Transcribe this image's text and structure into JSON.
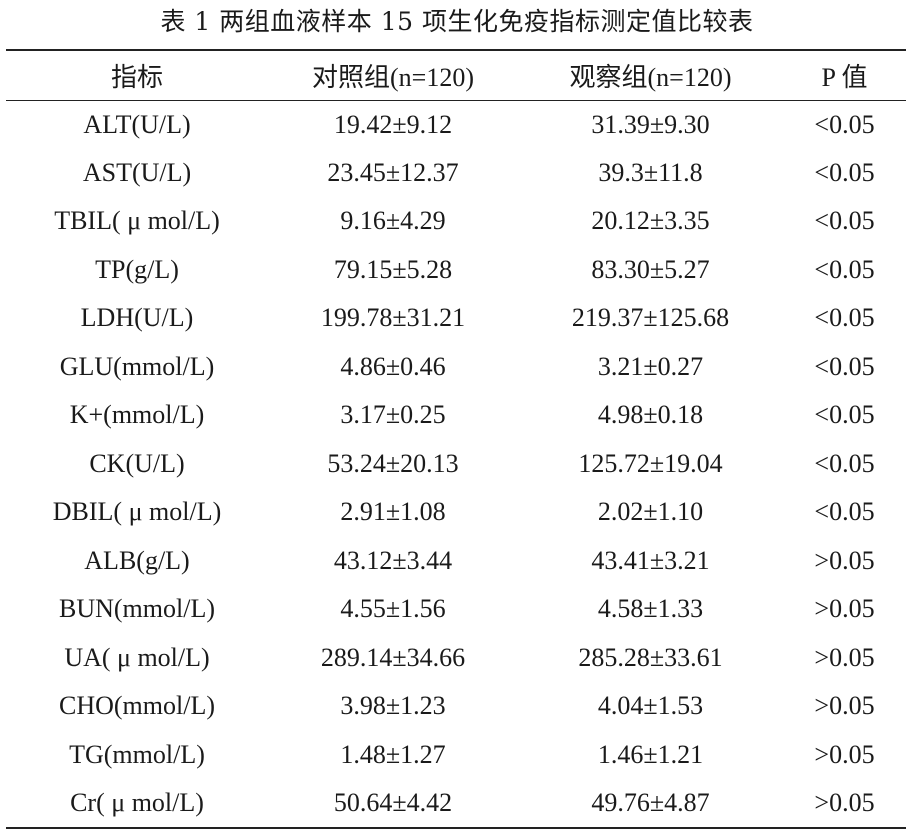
{
  "caption": "表 1  两组血液样本 15 项生化免疫指标测定值比较表",
  "table": {
    "headers": [
      "指标",
      "对照组(n=120)",
      "观察组(n=120)",
      "P 值"
    ],
    "rows": [
      [
        "ALT(U/L)",
        "19.42±9.12",
        "31.39±9.30",
        "<0.05"
      ],
      [
        "AST(U/L)",
        "23.45±12.37",
        "39.3±11.8",
        "<0.05"
      ],
      [
        "TBIL( μ mol/L)",
        "9.16±4.29",
        "20.12±3.35",
        "<0.05"
      ],
      [
        "TP(g/L)",
        "79.15±5.28",
        "83.30±5.27",
        "<0.05"
      ],
      [
        "LDH(U/L)",
        "199.78±31.21",
        "219.37±125.68",
        "<0.05"
      ],
      [
        "GLU(mmol/L)",
        "4.86±0.46",
        "3.21±0.27",
        "<0.05"
      ],
      [
        "K+(mmol/L)",
        "3.17±0.25",
        "4.98±0.18",
        "<0.05"
      ],
      [
        "CK(U/L)",
        "53.24±20.13",
        "125.72±19.04",
        "<0.05"
      ],
      [
        "DBIL( μ mol/L)",
        "2.91±1.08",
        "2.02±1.10",
        "<0.05"
      ],
      [
        "ALB(g/L)",
        "43.12±3.44",
        "43.41±3.21",
        ">0.05"
      ],
      [
        "BUN(mmol/L)",
        "4.55±1.56",
        "4.58±1.33",
        ">0.05"
      ],
      [
        "UA( μ mol/L)",
        "289.14±34.66",
        "285.28±33.61",
        ">0.05"
      ],
      [
        "CHO(mmol/L)",
        "3.98±1.23",
        "4.04±1.53",
        ">0.05"
      ],
      [
        "TG(mmol/L)",
        "1.48±1.27",
        "1.46±1.21",
        ">0.05"
      ],
      [
        "Cr( μ mol/L)",
        "50.64±4.42",
        "49.76±4.87",
        ">0.05"
      ]
    ]
  }
}
